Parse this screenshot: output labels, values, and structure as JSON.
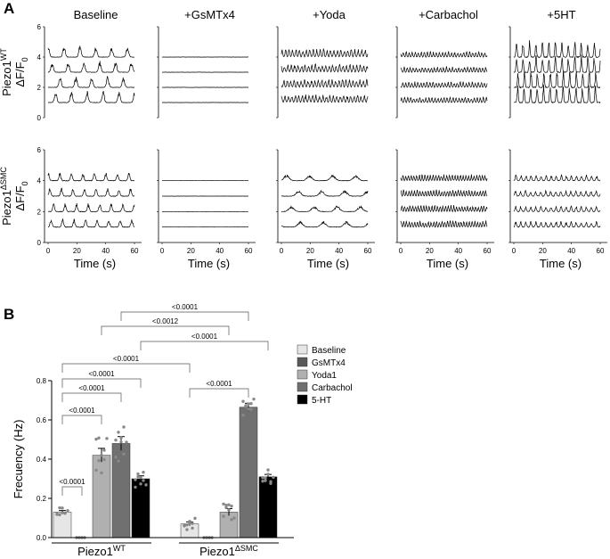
{
  "panel_a": {
    "letter": "A",
    "conditions": [
      "Baseline",
      "+GsMTx4",
      "+Yoda",
      "+Carbachol",
      "+5HT"
    ],
    "row_labels": [
      {
        "genotype": "Piezo1",
        "sup": "WT",
        "measure": "ΔF/F",
        "sub": "0"
      },
      {
        "genotype": "Piezo1",
        "sup": "ΔSMC",
        "measure": "ΔF/F",
        "sub": "0"
      }
    ],
    "y_ticks": [
      "0",
      "2",
      "4",
      "6"
    ],
    "x_ticks": [
      "0",
      "20",
      "40",
      "60"
    ],
    "x_label": "Time (s)"
  },
  "chart_data": {
    "type": "bar",
    "panel_letter": "B",
    "ylabel": "Frecuency (Hz)",
    "ylim": [
      0,
      0.8
    ],
    "yticks": [
      "0.0",
      "0.2",
      "0.4",
      "0.6",
      "0.8"
    ],
    "groups": [
      {
        "name": "Piezo1",
        "sup": "WT"
      },
      {
        "name": "Piezo1",
        "sup": "ΔSMC"
      }
    ],
    "series": [
      {
        "name": "Baseline",
        "color": "#e6e6e6",
        "values": [
          0.13,
          0.07
        ],
        "sem": [
          0.008,
          0.01
        ]
      },
      {
        "name": "GsMTx4",
        "color": "#595959",
        "values": [
          0.0,
          0.0
        ],
        "sem": [
          0.0,
          0.0
        ]
      },
      {
        "name": "Yoda1",
        "color": "#b0b0b0",
        "values": [
          0.42,
          0.13
        ],
        "sem": [
          0.035,
          0.018
        ]
      },
      {
        "name": "Carbachol",
        "color": "#707070",
        "values": [
          0.48,
          0.665
        ],
        "sem": [
          0.035,
          0.02
        ]
      },
      {
        "name": "5-HT",
        "color": "#000000",
        "values": [
          0.3,
          0.31
        ],
        "sem": [
          0.015,
          0.012
        ]
      }
    ],
    "comparisons": [
      "<0.0001",
      "<0.0001",
      "<0.0001",
      "<0.0001",
      "<0.0001",
      "<0.0012",
      "<0.0001",
      "<0.0001",
      "<0.0001"
    ]
  }
}
